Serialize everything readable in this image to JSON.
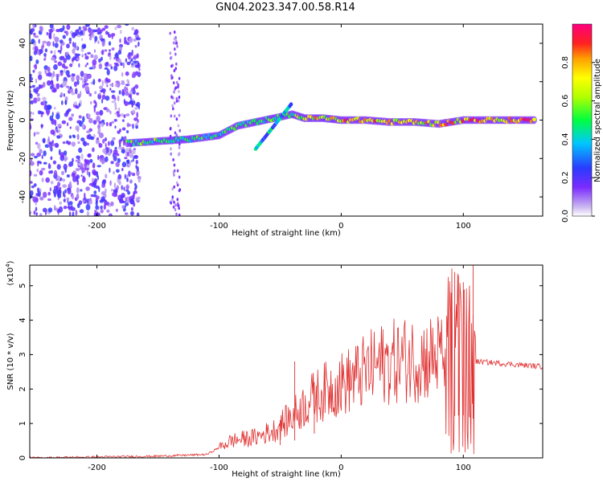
{
  "chart_data": [
    {
      "type": "heatmap",
      "panel": "top",
      "xlabel": "Height of straight line (km)",
      "ylabel": "Frequency (Hz)",
      "xlim": [
        -255,
        165
      ],
      "ylim": [
        -50,
        50
      ],
      "xticks": [
        -200,
        -100,
        0,
        100
      ],
      "yticks": [
        -40,
        -20,
        0,
        20,
        40
      ],
      "colorbar": {
        "label": "Normalized spectral amplitude",
        "range": [
          0.0,
          1.0
        ],
        "ticks": [
          0.0,
          0.2,
          0.4,
          0.6,
          0.8
        ]
      },
      "ridge": [
        {
          "x": -175,
          "y": -12,
          "amp": 0.5
        },
        {
          "x": -150,
          "y": -11,
          "amp": 0.55
        },
        {
          "x": -125,
          "y": -10,
          "amp": 0.5
        },
        {
          "x": -100,
          "y": -8,
          "amp": 0.45
        },
        {
          "x": -85,
          "y": -3,
          "amp": 0.5
        },
        {
          "x": -70,
          "y": -1,
          "amp": 0.45
        },
        {
          "x": -55,
          "y": 1,
          "amp": 0.5
        },
        {
          "x": -40,
          "y": 3,
          "amp": 0.55
        },
        {
          "x": -30,
          "y": 1,
          "amp": 0.7
        },
        {
          "x": -15,
          "y": 1,
          "amp": 0.75
        },
        {
          "x": 0,
          "y": 0,
          "amp": 0.8
        },
        {
          "x": 20,
          "y": 0,
          "amp": 0.8
        },
        {
          "x": 40,
          "y": -1,
          "amp": 0.75
        },
        {
          "x": 60,
          "y": -1,
          "amp": 0.75
        },
        {
          "x": 80,
          "y": -2,
          "amp": 0.7
        },
        {
          "x": 100,
          "y": 0,
          "amp": 0.85
        },
        {
          "x": 130,
          "y": 0,
          "amp": 0.8
        },
        {
          "x": 160,
          "y": 0,
          "amp": 0.9
        }
      ]
    },
    {
      "type": "line",
      "panel": "bottom",
      "xlabel": "Height of straight line (km)",
      "ylabel": "SNR (10 * v/v)",
      "scale_label": "(x10",
      "scale_exponent": "4",
      "scale_close": ")",
      "xlim": [
        -255,
        165
      ],
      "ylim": [
        0,
        5.6
      ],
      "xticks": [
        -200,
        -100,
        0,
        100
      ],
      "yticks": [
        0,
        1,
        2,
        3,
        4,
        5
      ],
      "color": "#e03030",
      "envelope": [
        {
          "x": -255,
          "y": 0.0
        },
        {
          "x": -150,
          "y": 0.05
        },
        {
          "x": -110,
          "y": 0.1
        },
        {
          "x": -90,
          "y": 0.5
        },
        {
          "x": -70,
          "y": 0.6
        },
        {
          "x": -55,
          "y": 0.8
        },
        {
          "x": -40,
          "y": 1.2
        },
        {
          "x": -25,
          "y": 1.7
        },
        {
          "x": -10,
          "y": 2.0
        },
        {
          "x": 10,
          "y": 2.3
        },
        {
          "x": 30,
          "y": 2.7
        },
        {
          "x": 50,
          "y": 2.85
        },
        {
          "x": 70,
          "y": 2.9
        },
        {
          "x": 85,
          "y": 3.0
        },
        {
          "x": 100,
          "y": 3.1
        },
        {
          "x": 110,
          "y": 2.8
        },
        {
          "x": 130,
          "y": 2.75
        },
        {
          "x": 165,
          "y": 2.65
        }
      ],
      "spikes": [
        {
          "x": -50,
          "y": 1.1
        },
        {
          "x": -38,
          "y": 2.8
        },
        {
          "x": -22,
          "y": 2.2
        },
        {
          "x": 90,
          "y": 4.8
        },
        {
          "x": 93,
          "y": 5.4
        },
        {
          "x": 96,
          "y": 5.3
        },
        {
          "x": 100,
          "y": 5.1
        },
        {
          "x": 105,
          "y": 5.0
        },
        {
          "x": 108,
          "y": 5.6
        }
      ]
    }
  ],
  "title": "GN04.2023.347.00.58.R14"
}
